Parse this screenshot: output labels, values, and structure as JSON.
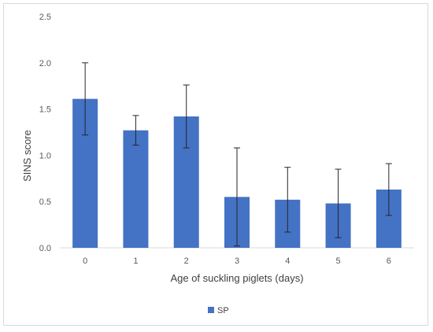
{
  "chart_data": {
    "type": "bar",
    "categories": [
      "0",
      "1",
      "2",
      "3",
      "4",
      "5",
      "6"
    ],
    "series": [
      {
        "name": "SP",
        "values": [
          1.61,
          1.27,
          1.42,
          0.55,
          0.52,
          0.48,
          0.63
        ],
        "error_low": [
          1.22,
          1.11,
          1.08,
          0.02,
          0.17,
          0.11,
          0.35
        ],
        "error_high": [
          2.0,
          1.43,
          1.76,
          1.08,
          0.87,
          0.85,
          0.91
        ],
        "color": "#4472c4"
      }
    ],
    "xlabel": "Age of suckling piglets (days)",
    "ylabel": "SINS score",
    "ylim": [
      0,
      2.5
    ],
    "yticks": [
      "0.0",
      "0.5",
      "1.0",
      "1.5",
      "2.0",
      "2.5"
    ],
    "grid": false,
    "legend_position": "bottom"
  }
}
